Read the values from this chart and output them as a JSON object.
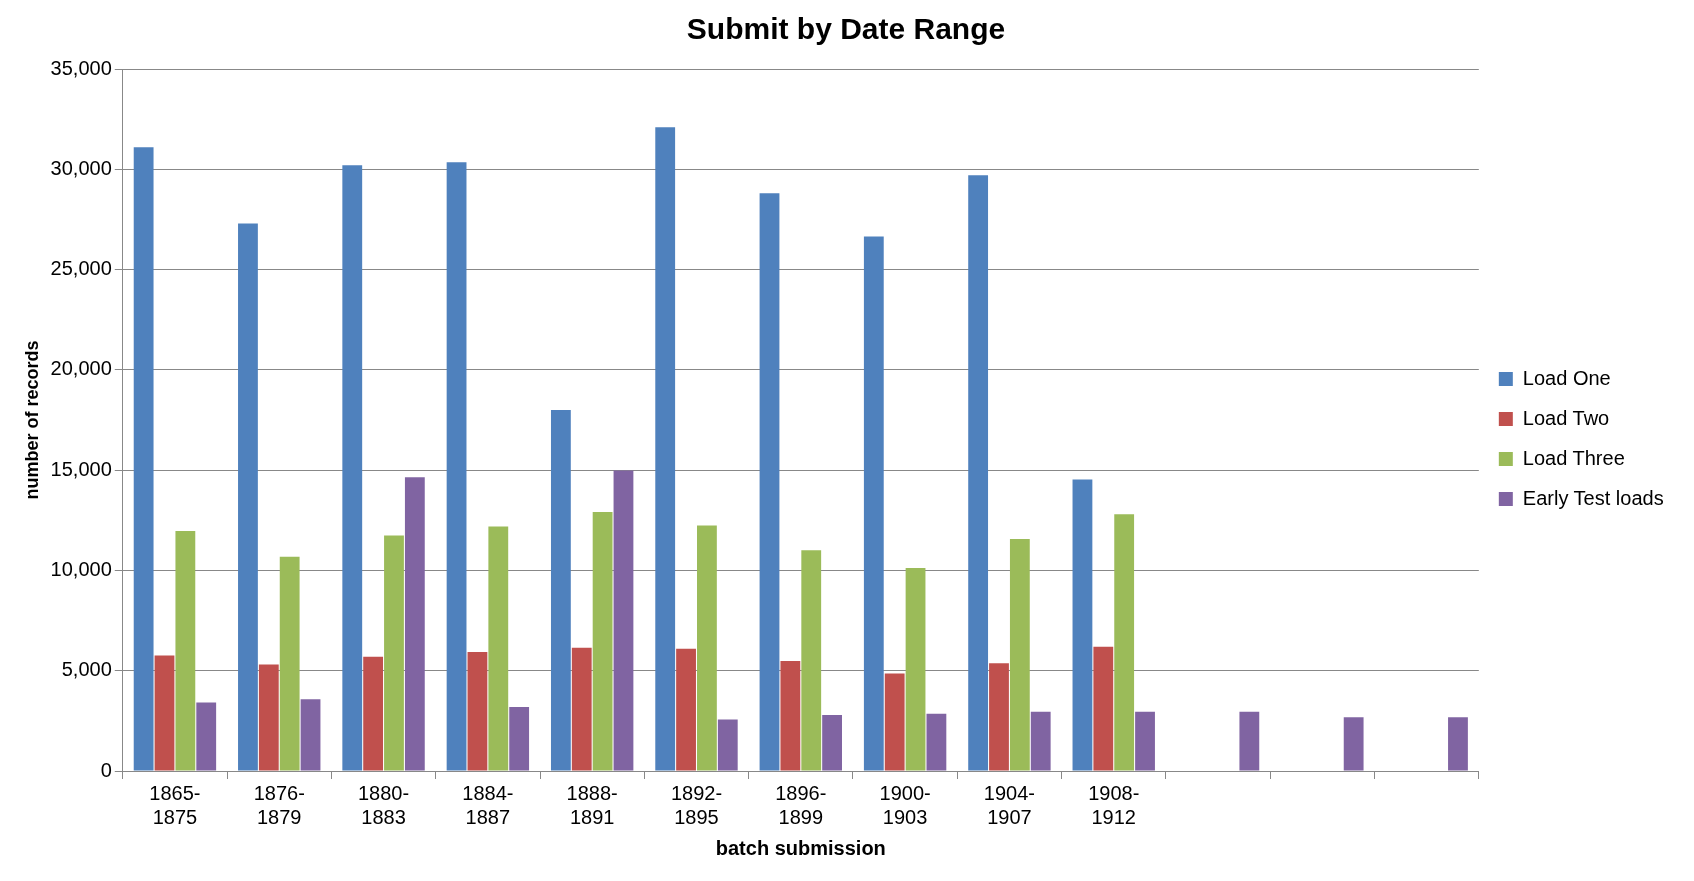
{
  "chart_data": {
    "type": "bar",
    "title": "Submit by Date Range",
    "xlabel": "batch submission",
    "ylabel": "number of records",
    "categories": [
      "1865-1875",
      "1876-1879",
      "1880-1883",
      "1884-1887",
      "1888-1891",
      "1892-1895",
      "1896-1899",
      "1900-1903",
      "1904-1907",
      "1908-1912",
      null,
      null,
      null
    ],
    "series": [
      {
        "name": "Load One",
        "color": "#4f81bd",
        "values": [
          31100,
          27300,
          30200,
          30350,
          18000,
          32100,
          28800,
          26650,
          29700,
          14530,
          null,
          null,
          null
        ]
      },
      {
        "name": "Load Two",
        "color": "#c0504d",
        "values": [
          5760,
          5310,
          5700,
          5930,
          6150,
          6090,
          5480,
          4860,
          5370,
          6200,
          null,
          null,
          null
        ]
      },
      {
        "name": "Load Three",
        "color": "#9bbb59",
        "values": [
          11960,
          10680,
          11740,
          12190,
          12910,
          12240,
          11010,
          10120,
          11570,
          12800,
          null,
          null,
          null
        ]
      },
      {
        "name": "Early Test loads",
        "color": "#8064a2",
        "values": [
          3410,
          3580,
          14650,
          3190,
          14980,
          2570,
          2790,
          2850,
          2960,
          2960,
          2960,
          2680,
          2680
        ]
      }
    ],
    "ylim": [
      0,
      35000
    ],
    "yticks": [
      0,
      {
        "value": 5000,
        "label": "5,000"
      },
      {
        "value": 10000,
        "label": "10,000"
      },
      {
        "value": 15000,
        "label": "15,000"
      },
      {
        "value": 20000,
        "label": "20,000"
      },
      {
        "value": 25000,
        "label": "25,000"
      },
      {
        "value": 30000,
        "label": "30,000"
      },
      {
        "value": 35000,
        "label": "35,000"
      }
    ],
    "grid": "y",
    "legend": "right"
  }
}
